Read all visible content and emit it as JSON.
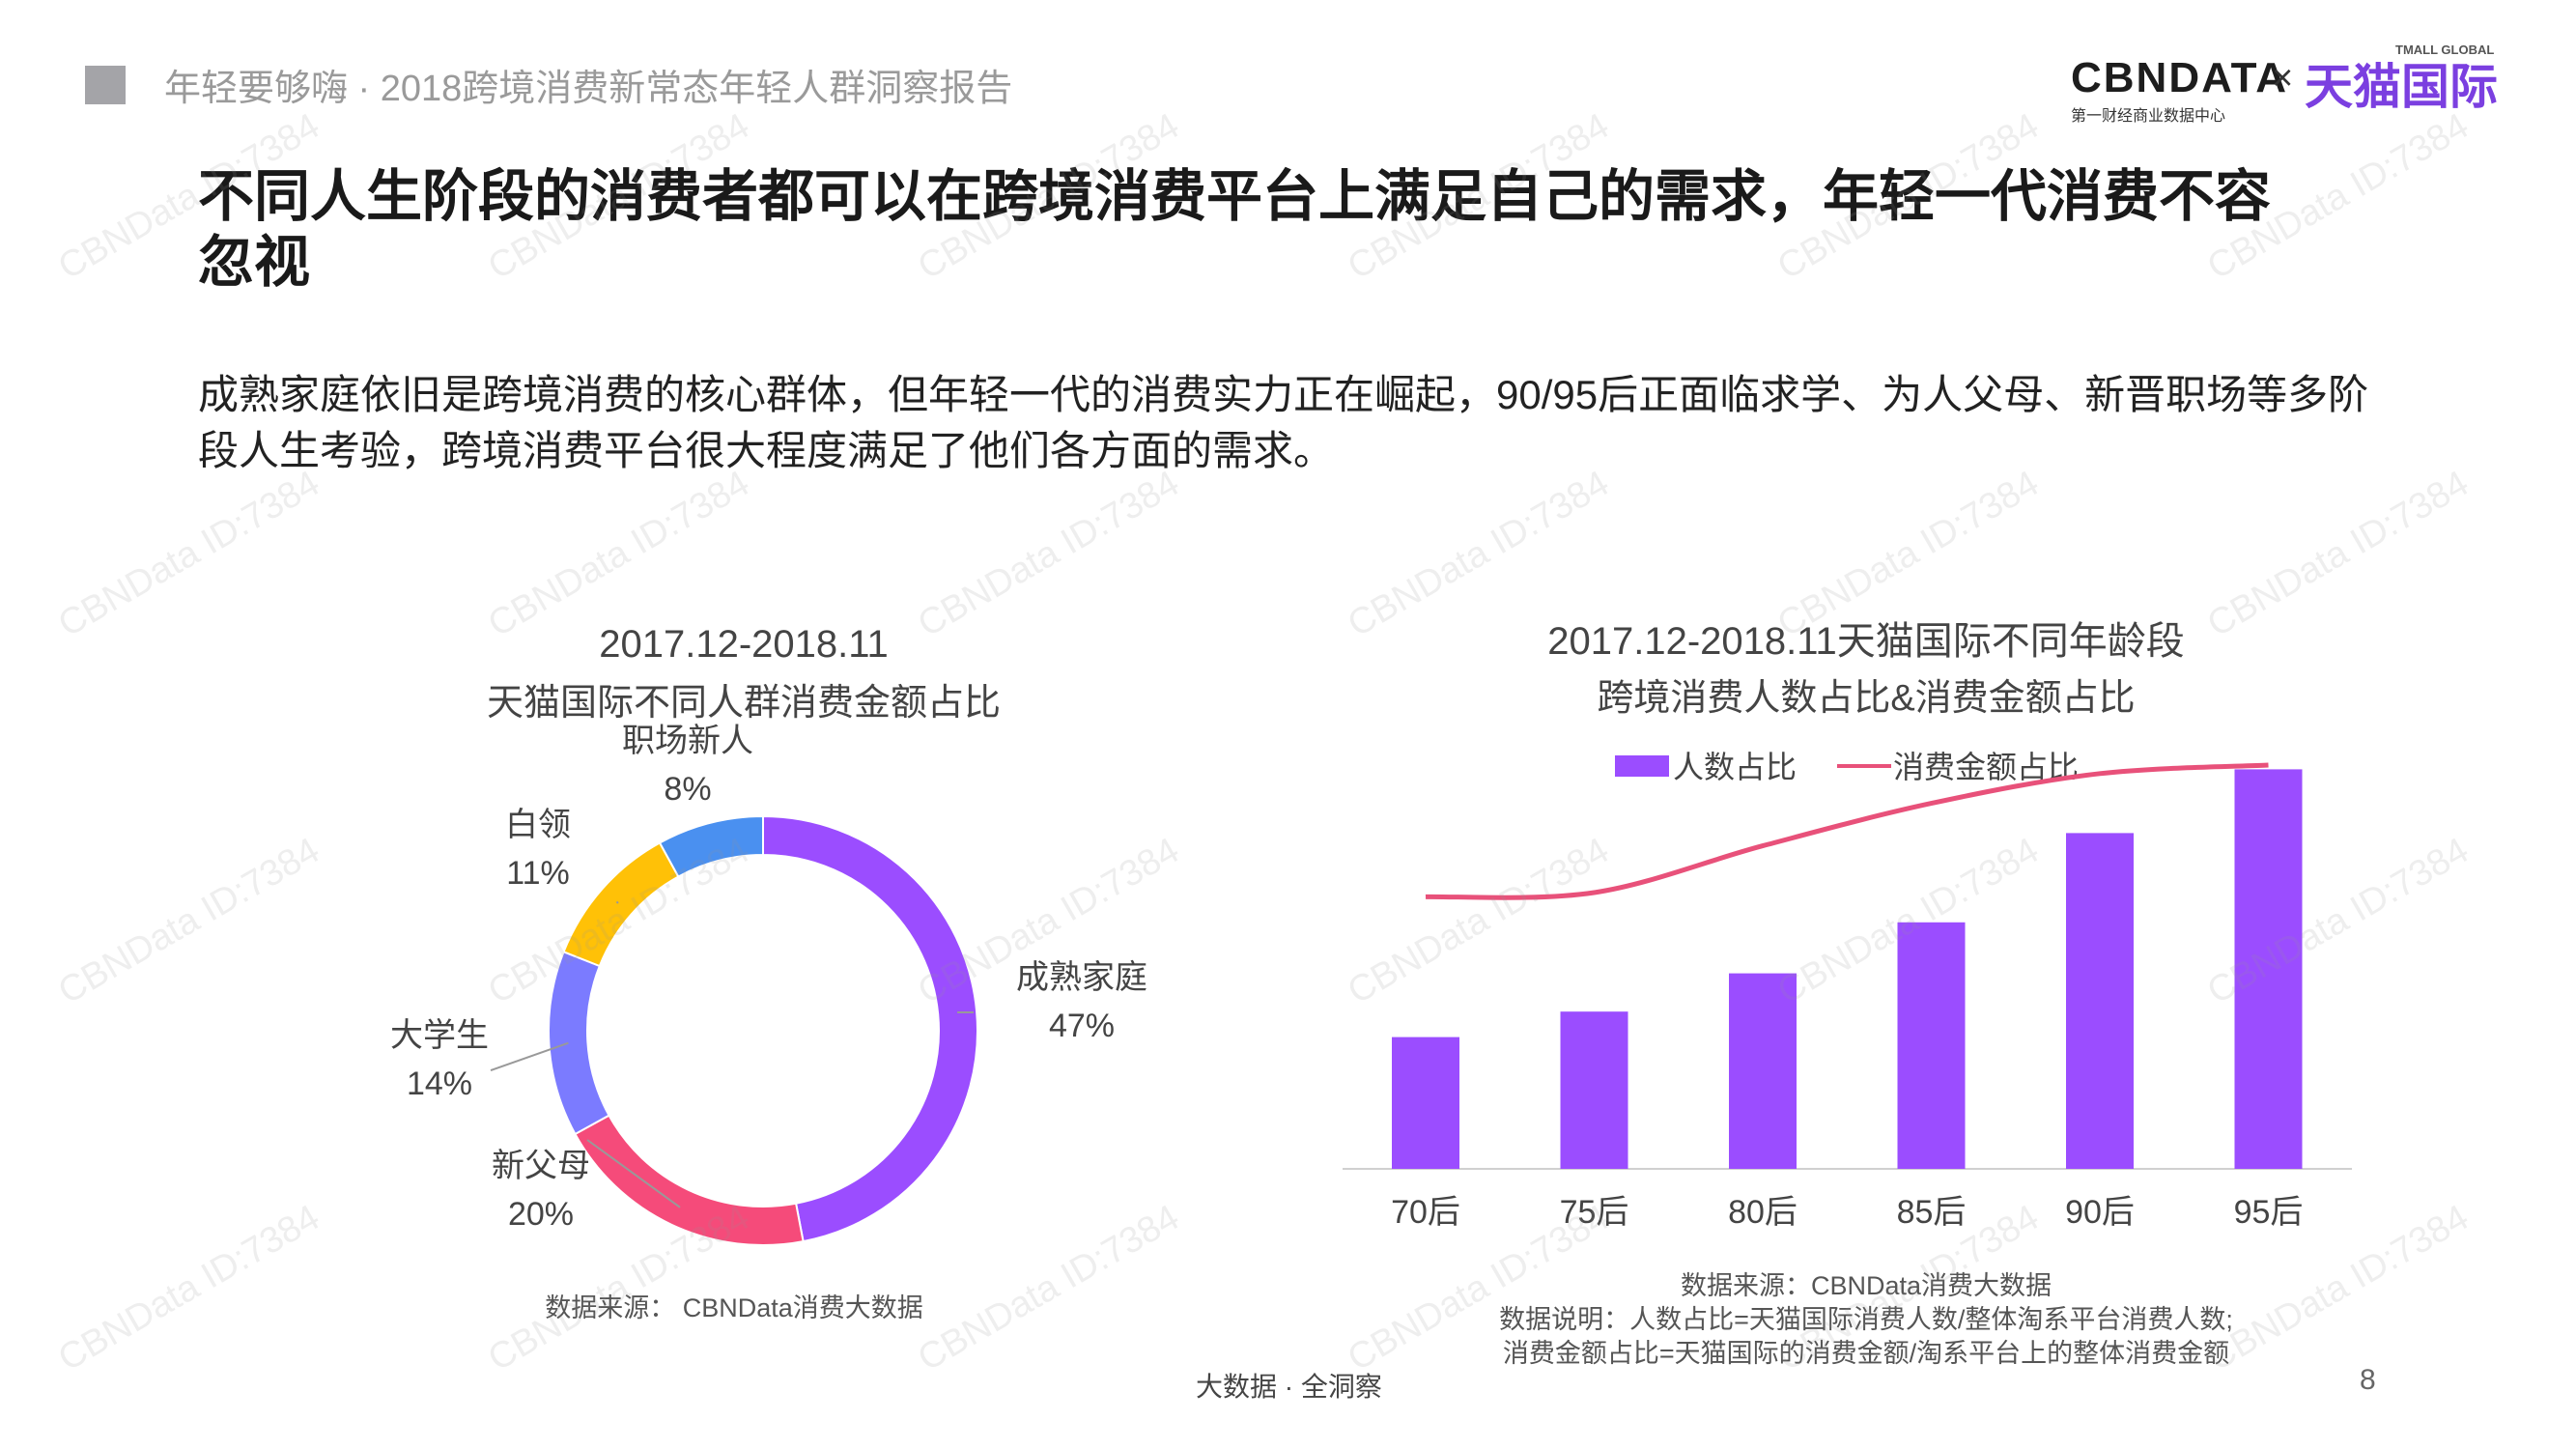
{
  "header": {
    "title": "年轻要够嗨 · 2018跨境消费新常态年轻人群洞察报告"
  },
  "logo": {
    "cbndata": "CBNDATA",
    "cbndata_sub": "第一财经商业数据中心",
    "times": "×",
    "tmall": "天猫国际",
    "tmall_small": "TMALL GLOBAL"
  },
  "main_title": "不同人生阶段的消费者都可以在跨境消费平台上满足自己的需求，年轻一代消费不容忽视",
  "intro": "成熟家庭依旧是跨境消费的核心群体，但年轻一代的消费实力正在崛起，90/95后正面临求学、为人父母、新晋职场等多阶段人生考验，跨境消费平台很大程度满足了他们各方面的需求。",
  "colors": {
    "purple": "#9b4dff",
    "pink": "#f54b7a",
    "blue_violet": "#7b7bff",
    "yellow": "#ffc107",
    "blue": "#4a90f0",
    "line": "#e8517a"
  },
  "chart_data": [
    {
      "type": "pie",
      "donut": true,
      "title_line1": "2017.12-2018.11",
      "title_line2": "天猫国际不同人群消费金额占比",
      "slices": [
        {
          "label": "成熟家庭",
          "value": 47,
          "display": "47%",
          "color": "#9b4dff"
        },
        {
          "label": "新父母",
          "value": 20,
          "display": "20%",
          "color": "#f54b7a"
        },
        {
          "label": "大学生",
          "value": 14,
          "display": "14%",
          "color": "#7b7bff"
        },
        {
          "label": "白领",
          "value": 11,
          "display": "11%",
          "color": "#ffc107"
        },
        {
          "label": "职场新人",
          "value": 8,
          "display": "8%",
          "color": "#4a90f0"
        }
      ],
      "source": "数据来源： CBNData消费大数据"
    },
    {
      "type": "bar",
      "combo_line": true,
      "title_line1": "2017.12-2018.11天猫国际不同年龄段",
      "title_line2": "跨境消费人数占比&消费金额占比",
      "categories": [
        "70后",
        "75后",
        "80后",
        "85后",
        "90后",
        "95后"
      ],
      "legend": {
        "bar": "人数占比",
        "line": "消费金额占比",
        "placement": "top-center"
      },
      "series": [
        {
          "name": "人数占比",
          "type": "bar",
          "values": [
            0.31,
            0.37,
            0.46,
            0.58,
            0.79,
            0.94
          ],
          "color": "#9b4dff"
        },
        {
          "name": "消费金额占比",
          "type": "line",
          "values": [
            0.64,
            0.65,
            0.76,
            0.86,
            0.93,
            0.95
          ],
          "color": "#e8517a"
        }
      ],
      "ylim": [
        0,
        1
      ],
      "source": "数据来源：CBNData消费大数据",
      "note_line1": "数据说明：人数占比=天猫国际消费人数/整体淘系平台消费人数;",
      "note_line2": "消费金额占比=天猫国际的消费金额/淘系平台上的整体消费金额"
    }
  ],
  "watermark": "CBNData ID:7384",
  "footer": {
    "center": "大数据 · 全洞察",
    "page": "8"
  }
}
